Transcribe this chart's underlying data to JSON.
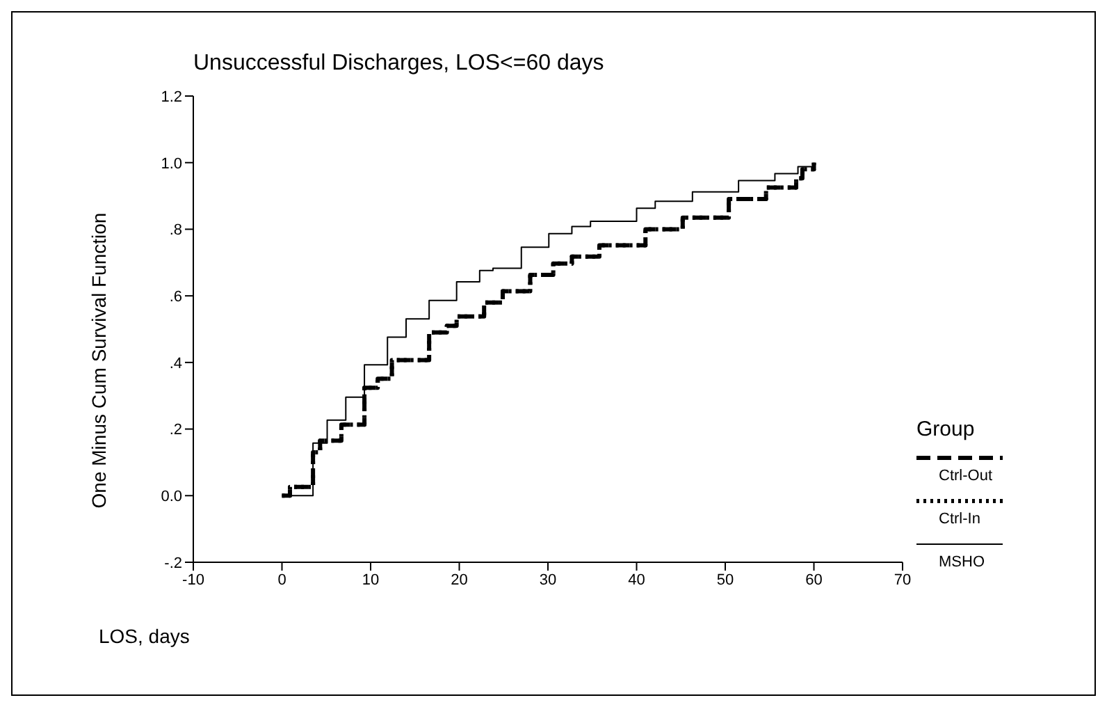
{
  "chart_data": {
    "type": "step",
    "title": "Unsuccessful Discharges, LOS<=60 days",
    "xlabel": "LOS, days",
    "ylabel": "One Minus Cum Survival Function",
    "legend_title": "Group",
    "legend": "right",
    "grid": false,
    "xlim": [
      -10,
      70
    ],
    "xticks": [
      -10,
      0,
      10,
      20,
      30,
      40,
      50,
      60,
      70
    ],
    "ylim": [
      -0.2,
      1.2
    ],
    "yticks": [
      {
        "value": -0.2,
        "label": "-.2"
      },
      {
        "value": 0,
        "label": "0.0"
      },
      {
        "value": 0.2,
        "label": ".2"
      },
      {
        "value": 0.4,
        "label": ".4"
      },
      {
        "value": 0.6,
        "label": ".6"
      },
      {
        "value": 0.8,
        "label": ".8"
      },
      {
        "value": 1,
        "label": "1.0"
      },
      {
        "value": 1.2,
        "label": "1.2"
      }
    ],
    "series": [
      {
        "name": "Ctrl-Out",
        "color": "#000000",
        "line_style": "dashed",
        "x": [
          0,
          0.9,
          3.5,
          4.3,
          6.7,
          9.3,
          10.8,
          12.4,
          16.6,
          18.6,
          19.7,
          22.8,
          24.9,
          28,
          30.6,
          32.7,
          35.8,
          41,
          45.2,
          50.4,
          54.6,
          58,
          58.7,
          60
        ],
        "values": [
          0,
          0.026,
          0.13,
          0.165,
          0.213,
          0.324,
          0.351,
          0.407,
          0.49,
          0.51,
          0.538,
          0.58,
          0.614,
          0.663,
          0.697,
          0.718,
          0.752,
          0.8,
          0.835,
          0.891,
          0.925,
          0.953,
          0.98,
          1
        ]
      },
      {
        "name": "Ctrl-In",
        "color": "#000000",
        "line_style": "dotted",
        "x": [
          0,
          0.9,
          3.5,
          4.3,
          6.7,
          9.3,
          10.8,
          12.4,
          16.6,
          18.6,
          19.7,
          22.8,
          24.9,
          28,
          30.6,
          32.7,
          35.8,
          41,
          45.2,
          50.4,
          54.6,
          58,
          58.7,
          60
        ],
        "values": [
          0,
          0.026,
          0.13,
          0.165,
          0.213,
          0.324,
          0.351,
          0.407,
          0.49,
          0.51,
          0.538,
          0.58,
          0.614,
          0.663,
          0.697,
          0.718,
          0.752,
          0.8,
          0.835,
          0.891,
          0.925,
          0.953,
          0.98,
          1
        ]
      },
      {
        "name": "MSHO",
        "color": "#000000",
        "line_style": "solid",
        "x": [
          0,
          3.5,
          5.1,
          7.2,
          9.3,
          11.9,
          14,
          16.6,
          19.7,
          22.3,
          23.8,
          27,
          30.1,
          32.7,
          34.8,
          40,
          42.1,
          46.3,
          51.5,
          55.6,
          58.2,
          60
        ],
        "values": [
          0,
          0.158,
          0.227,
          0.296,
          0.393,
          0.476,
          0.531,
          0.586,
          0.642,
          0.676,
          0.683,
          0.746,
          0.787,
          0.808,
          0.824,
          0.863,
          0.884,
          0.912,
          0.946,
          0.967,
          0.988,
          1
        ]
      }
    ]
  }
}
